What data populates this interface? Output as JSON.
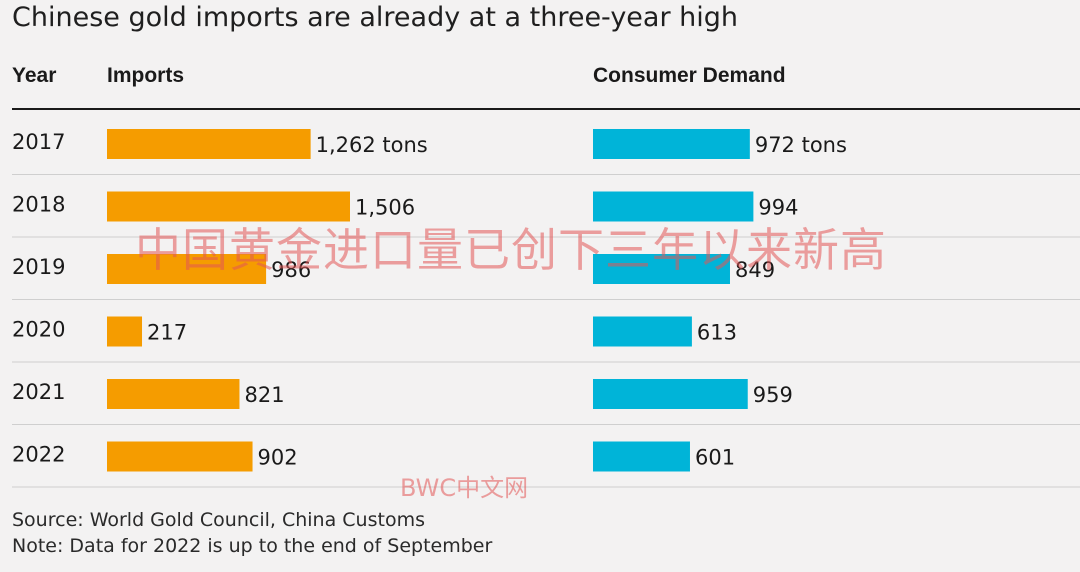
{
  "title": "Chinese gold imports are already at a three-year high",
  "headers": {
    "year": "Year",
    "imports": "Imports",
    "consumer": "Consumer Demand"
  },
  "chart_data": {
    "type": "table",
    "unit": "tons",
    "years": [
      "2017",
      "2018",
      "2019",
      "2020",
      "2021",
      "2022"
    ],
    "series": [
      {
        "name": "Imports",
        "color": "#f59c00",
        "values": [
          1262,
          1506,
          986,
          217,
          821,
          902
        ],
        "labels": [
          "1,262 tons",
          "1,506",
          "986",
          "217",
          "821",
          "902"
        ]
      },
      {
        "name": "Consumer Demand",
        "color": "#00b4d8",
        "values": [
          972,
          994,
          849,
          613,
          959,
          601
        ],
        "labels": [
          "972 tons",
          "994",
          "849",
          "613",
          "959",
          "601"
        ]
      }
    ]
  },
  "footer": {
    "source": "Source: World Gold Council, China Customs",
    "note": "Note: Data for 2022 is up to the end of September"
  },
  "watermarks": {
    "chinese_title": "中国黄金进口量已创下三年以来新高",
    "site": "BWC中文网"
  }
}
